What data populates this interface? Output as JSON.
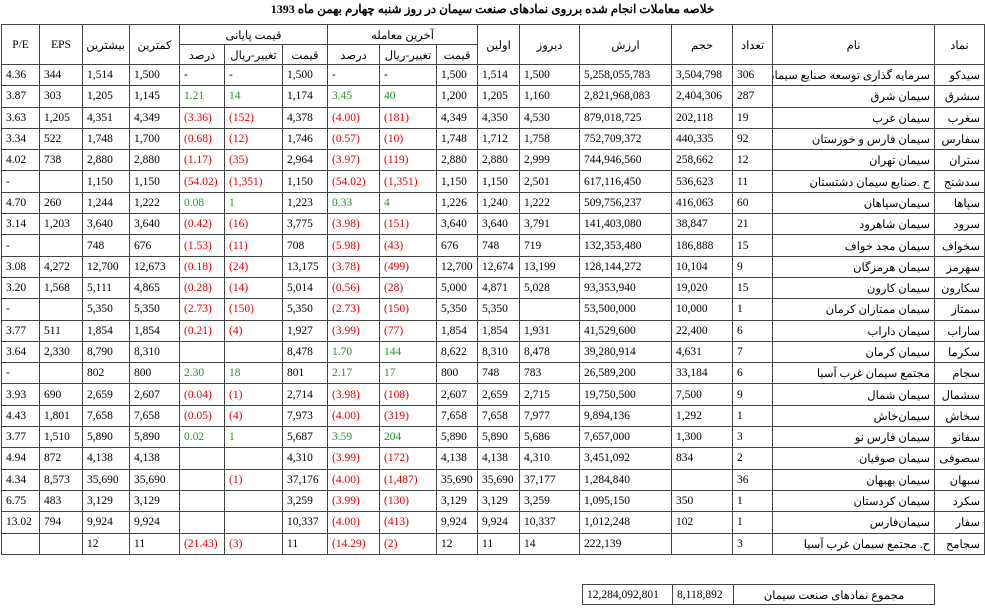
{
  "header": {
    "title": "خلاصه معاملات انجام شده برروی نمادهای صنعت سیمان در روز شنبه چهارم بهمن ماه 1393"
  },
  "table": {
    "columns": {
      "symbol": "نماد",
      "name": "نام",
      "count": "تعداد",
      "volume": "حجم",
      "value": "ارزش",
      "yesterday": "دیروز",
      "first": "اولین",
      "last_trade": {
        "title": "آخرین معامله",
        "price": "قیمت",
        "change": "تغییر-ریال",
        "percent": "درصد"
      },
      "close": {
        "title": "قیمت پایانی",
        "price": "قیمت",
        "change": "تغییر-ریال",
        "percent": "درصد"
      },
      "low": "کمترین",
      "high": "بیشترین",
      "eps": "EPS",
      "pe": "P/E"
    },
    "rows": [
      [
        "سیدکو",
        "سرمایه گذاری توسعه صنایع سیمان",
        "306",
        "3,504,798",
        "5,258,055,783",
        "1,500",
        "1,514",
        "1,500",
        "-",
        "-",
        "1,500",
        "-",
        "-",
        "1,500",
        "1,514",
        "344",
        "4.36"
      ],
      [
        "سشرق",
        "سیمان شرق",
        "287",
        "2,404,306",
        "2,821,968,083",
        "1,160",
        "1,205",
        "1,200",
        "40",
        "3.45",
        "1,174",
        "14",
        "1.21",
        "1,145",
        "1,205",
        "303",
        "3.87"
      ],
      [
        "سغرب",
        "سیمان غرب",
        "19",
        "202,118",
        "879,018,725",
        "4,530",
        "4,350",
        "4,349",
        "(181)",
        "(4.00)",
        "4,378",
        "(152)",
        "(3.36)",
        "4,349",
        "4,351",
        "1,205",
        "3.63"
      ],
      [
        "سفارس",
        "سیمان فارس و خوزستان",
        "92",
        "440,335",
        "752,709,372",
        "1,758",
        "1,712",
        "1,748",
        "(10)",
        "(0.57)",
        "1,746",
        "(12)",
        "(0.68)",
        "1,700",
        "1,748",
        "522",
        "3.34"
      ],
      [
        "ستران",
        "سیمان تهران",
        "12",
        "258,662",
        "744,946,560",
        "2,999",
        "2,880",
        "2,880",
        "(119)",
        "(3.97)",
        "2,964",
        "(35)",
        "(1.17)",
        "2,880",
        "2,880",
        "738",
        "4.02"
      ],
      [
        "سدشتج",
        "ح .صنایع سیمان دشتستان",
        "11",
        "536,623",
        "617,116,450",
        "2,501",
        "1,150",
        "1,150",
        "(1,351)",
        "(54.02)",
        "1,150",
        "(1,351)",
        "(54.02)",
        "1,150",
        "1,150",
        null,
        "-"
      ],
      [
        "سپاها",
        "سیمان‌سپاهان",
        "60",
        "416,063",
        "509,756,237",
        "1,222",
        "1,240",
        "1,226",
        "4",
        "0.33",
        "1,223",
        "1",
        "0.08",
        "1,222",
        "1,244",
        "260",
        "4.70"
      ],
      [
        "سرود",
        "سیمان شاهرود",
        "21",
        "38,847",
        "141,403,080",
        "3,791",
        "3,640",
        "3,640",
        "(151)",
        "(3.98)",
        "3,775",
        "(16)",
        "(0.42)",
        "3,640",
        "3,640",
        "1,203",
        "3.14"
      ],
      [
        "سخواف",
        "سیمان مجد خواف",
        "15",
        "186,888",
        "132,353,480",
        "719",
        "748",
        "676",
        "(43)",
        "(5.98)",
        "708",
        "(11)",
        "(1.53)",
        "676",
        "748",
        null,
        "-"
      ],
      [
        "سهرمز",
        "سیمان هرمزگان",
        "9",
        "10,104",
        "128,144,272",
        "13,199",
        "12,674",
        "12,700",
        "(499)",
        "(3.78)",
        "13,175",
        "(24)",
        "(0.18)",
        "12,673",
        "12,700",
        "4,272",
        "3.08"
      ],
      [
        "سکارون",
        "سیمان کارون",
        "15",
        "19,020",
        "93,353,940",
        "5,028",
        "4,871",
        "5,000",
        "(28)",
        "(0.56)",
        "5,014",
        "(14)",
        "(0.28)",
        "4,865",
        "5,111",
        "1,568",
        "3.20"
      ],
      [
        "سمتاز",
        "سیمان ممتازان کرمان",
        "1",
        "10,000",
        "53,500,000",
        null,
        "5,350",
        "5,350",
        "(150)",
        "(2.73)",
        "5,350",
        "(150)",
        "(2.73)",
        "5,350",
        "5,350",
        null,
        "-"
      ],
      [
        "ساراب",
        "سیمان داراب",
        "6",
        "22,400",
        "41,529,600",
        "1,931",
        "1,854",
        "1,854",
        "(77)",
        "(3.99)",
        "1,927",
        "(4)",
        "(0.21)",
        "1,854",
        "1,854",
        "511",
        "3.77"
      ],
      [
        "سکرما",
        "سیمان کرمان",
        "7",
        "4,631",
        "39,280,914",
        "8,478",
        "8,310",
        "8,622",
        "144",
        "1.70",
        "8,478",
        null,
        null,
        "8,310",
        "8,790",
        "2,330",
        "3.64"
      ],
      [
        "سجام",
        "مجتمع سیمان غرب آسیا",
        "6",
        "33,184",
        "26,589,200",
        "783",
        "748",
        "800",
        "17",
        "2.17",
        "801",
        "18",
        "2.30",
        "800",
        "802",
        null,
        "-"
      ],
      [
        "سشمال",
        "سیمان شمال",
        "9",
        "7,500",
        "19,750,500",
        "2,715",
        "2,659",
        "2,607",
        "(108)",
        "(3.98)",
        "2,714",
        "(1)",
        "(0.04)",
        "2,607",
        "2,659",
        "690",
        "3.93"
      ],
      [
        "سخاش",
        "سیمان‌خاش",
        "1",
        "1,292",
        "9,894,136",
        "7,977",
        "7,658",
        "7,658",
        "(319)",
        "(4.00)",
        "7,973",
        "(4)",
        "(0.05)",
        "7,658",
        "7,658",
        "1,801",
        "4.43"
      ],
      [
        "سفانو",
        "سیمان فارس نو",
        "3",
        "1,300",
        "7,657,000",
        "5,686",
        "5,890",
        "5,890",
        "204",
        "3.59",
        "5,687",
        "1",
        "0.02",
        "5,890",
        "5,890",
        "1,510",
        "3.77"
      ],
      [
        "سصوفی",
        "سیمان صوفیان",
        "2",
        "834",
        "3,451,092",
        "4,310",
        "4,138",
        "4,138",
        "(172)",
        "(3.99)",
        "4,310",
        null,
        null,
        "4,138",
        "4,138",
        "872",
        "4.94"
      ],
      [
        "سبهان",
        "سیمان بهبهان",
        "36",
        null,
        "1,284,840",
        "37,177",
        "35,690",
        "35,690",
        "(1,487)",
        "(4.00)",
        "37,176",
        "(1)",
        null,
        "35,690",
        "35,690",
        "8,573",
        "4.34"
      ],
      [
        "سکرد",
        "سیمان کردستان",
        "1",
        "350",
        "1,095,150",
        "3,259",
        "3,129",
        "3,129",
        "(130)",
        "(3.99)",
        "3,259",
        null,
        null,
        "3,129",
        "3,129",
        "483",
        "6.75"
      ],
      [
        "سفار",
        "سیمان‌فارس",
        "1",
        "102",
        "1,012,248",
        "10,337",
        "9,924",
        "9,924",
        "(413)",
        "(4.00)",
        "10,337",
        null,
        null,
        "9,924",
        "9,924",
        "794",
        "13.02"
      ],
      [
        "سجامح",
        "ح. مجتمع سیمان غرب آسیا",
        "3",
        null,
        "222,139",
        "14",
        "11",
        "12",
        "(2)",
        "(14.29)",
        "11",
        "(3)",
        "(21.43)",
        "11",
        "12",
        null,
        null
      ]
    ],
    "total": {
      "label": "مجموع نمادهای صنعت سیمان",
      "volume": "8,118,892",
      "value": "12,284,092,801"
    }
  }
}
